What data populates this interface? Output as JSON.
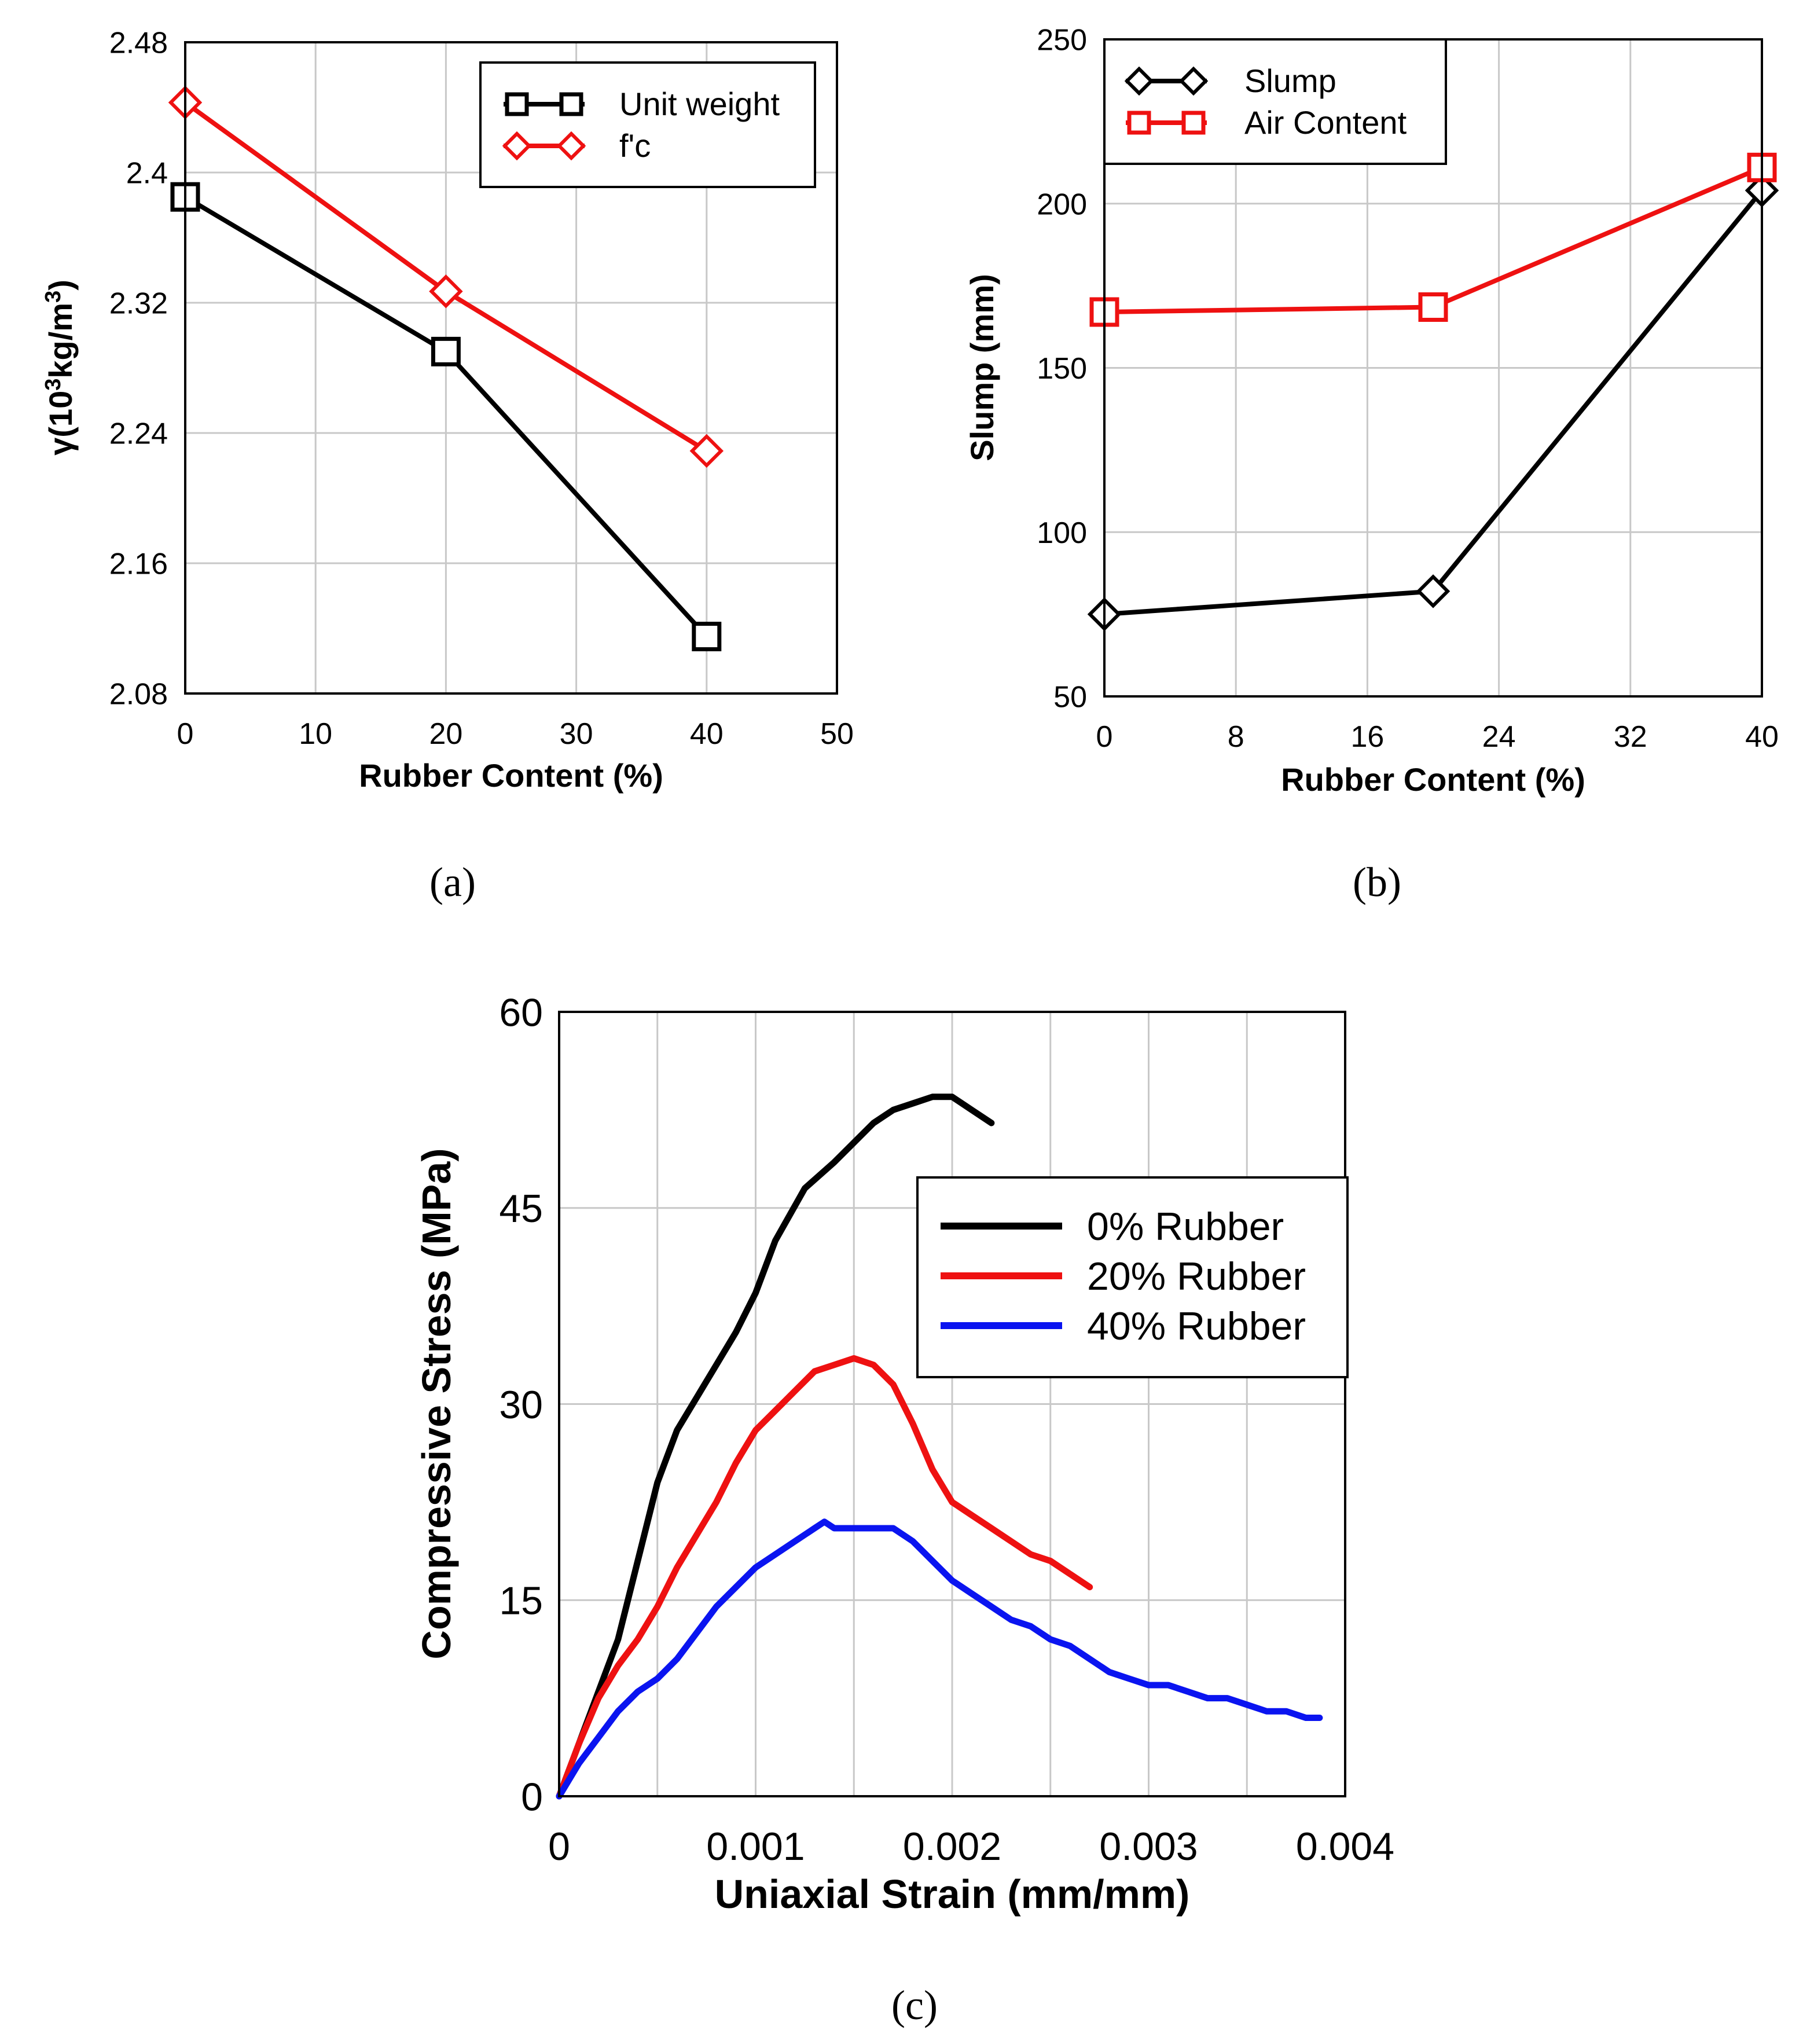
{
  "chart_data": [
    {
      "id": "a",
      "type": "line",
      "panel_label": "(a)",
      "xlabel": "Rubber Content (%)",
      "ylabel_parts": [
        "γ(10",
        "3",
        "kg/m",
        "3",
        ")"
      ],
      "xlim": [
        0,
        50
      ],
      "ylim": [
        2.08,
        2.48
      ],
      "xticks": [
        0,
        10,
        20,
        30,
        40,
        50
      ],
      "xtick_labels": [
        "0",
        "10",
        "20",
        "30",
        "40",
        "50"
      ],
      "yticks": [
        2.08,
        2.16,
        2.24,
        2.32,
        2.4,
        2.48
      ],
      "ytick_labels": [
        "2.08",
        "2.16",
        "2.24",
        "2.32",
        "2.4",
        "2.48"
      ],
      "grid": true,
      "legend_position": "top-right",
      "series": [
        {
          "name": "Unit weight",
          "color": "#000000",
          "marker": "square",
          "x": [
            0,
            20,
            40
          ],
          "y": [
            2.385,
            2.29,
            2.115
          ]
        },
        {
          "name": "f'c",
          "color": "#ee1111",
          "marker": "diamond",
          "x": [
            0,
            20,
            40
          ],
          "y": [
            2.443,
            2.327,
            2.229
          ]
        }
      ]
    },
    {
      "id": "b",
      "type": "line",
      "panel_label": "(b)",
      "xlabel": "Rubber Content (%)",
      "ylabel": "Slump (mm)",
      "xlim": [
        0,
        40
      ],
      "ylim": [
        50,
        250
      ],
      "xticks": [
        0,
        8,
        16,
        24,
        32,
        40
      ],
      "xtick_labels": [
        "0",
        "8",
        "16",
        "24",
        "32",
        "40"
      ],
      "yticks": [
        50,
        100,
        150,
        200,
        250
      ],
      "ytick_labels": [
        "50",
        "100",
        "150",
        "200",
        "250"
      ],
      "grid": true,
      "legend_position": "top-left",
      "series": [
        {
          "name": "Slump",
          "color": "#000000",
          "marker": "diamond",
          "x": [
            0,
            20,
            40
          ],
          "y": [
            75,
            82,
            204
          ]
        },
        {
          "name": "Air Content",
          "color": "#ee1111",
          "marker": "square",
          "x": [
            0,
            20,
            40
          ],
          "y": [
            167,
            168.5,
            211
          ]
        }
      ]
    },
    {
      "id": "c",
      "type": "line",
      "panel_label": "(c)",
      "xlabel": "Uniaxial Strain (mm/mm)",
      "ylabel": "Compressive Stress (MPa)",
      "xlim": [
        0,
        0.004
      ],
      "ylim": [
        0,
        60
      ],
      "xticks": [
        0,
        0.0005,
        0.001,
        0.0015,
        0.002,
        0.0025,
        0.003,
        0.0035,
        0.004
      ],
      "xtick_labels": [
        "0",
        "",
        "0.001",
        "",
        "0.002",
        "",
        "0.003",
        "",
        "0.004"
      ],
      "yticks": [
        0,
        15,
        30,
        45,
        60
      ],
      "ytick_labels": [
        "0",
        "15",
        "30",
        "45",
        "60"
      ],
      "grid": true,
      "legend_position": "top-right",
      "series": [
        {
          "name": "0% Rubber",
          "color": "#000000",
          "x": [
            0,
            0.0001,
            0.0002,
            0.0003,
            0.0004,
            0.0005,
            0.0006,
            0.0007,
            0.0008,
            0.0009,
            0.001,
            0.0011,
            0.00125,
            0.0014,
            0.0015,
            0.0016,
            0.0017,
            0.0018,
            0.0019,
            0.002,
            0.0021,
            0.0022
          ],
          "y": [
            0,
            4,
            8,
            12,
            18,
            24,
            28,
            30.5,
            33,
            35.5,
            38.5,
            42.5,
            46.5,
            48.5,
            50,
            51.5,
            52.5,
            53,
            53.5,
            53.5,
            52.5,
            51.5
          ]
        },
        {
          "name": "20% Rubber",
          "color": "#ee1111",
          "x": [
            0,
            0.0001,
            0.0002,
            0.0003,
            0.0004,
            0.0005,
            0.0006,
            0.0007,
            0.0008,
            0.0009,
            0.001,
            0.0011,
            0.0012,
            0.0013,
            0.0014,
            0.0015,
            0.0016,
            0.0017,
            0.0018,
            0.0019,
            0.002,
            0.0021,
            0.0022,
            0.0023,
            0.0024,
            0.0025,
            0.0026,
            0.0027
          ],
          "y": [
            0,
            4,
            7.5,
            10,
            12,
            14.5,
            17.5,
            20,
            22.5,
            25.5,
            28,
            29.5,
            31,
            32.5,
            33,
            33.5,
            33,
            31.5,
            28.5,
            25,
            22.5,
            21.5,
            20.5,
            19.5,
            18.5,
            18,
            17,
            16
          ]
        },
        {
          "name": "40% Rubber",
          "color": "#0a14f0",
          "x": [
            0,
            0.0001,
            0.0002,
            0.0003,
            0.0004,
            0.0005,
            0.0006,
            0.0007,
            0.0008,
            0.0009,
            0.001,
            0.0011,
            0.0012,
            0.0013,
            0.00135,
            0.0014,
            0.0015,
            0.0016,
            0.0017,
            0.0018,
            0.0019,
            0.002,
            0.0021,
            0.0022,
            0.0023,
            0.0024,
            0.0025,
            0.0026,
            0.0027,
            0.0028,
            0.0029,
            0.003,
            0.0031,
            0.0032,
            0.0033,
            0.0034,
            0.0035,
            0.0036,
            0.0037,
            0.0038,
            0.00387
          ],
          "y": [
            0,
            2.5,
            4.5,
            6.5,
            8,
            9,
            10.5,
            12.5,
            14.5,
            16,
            17.5,
            18.5,
            19.5,
            20.5,
            21,
            20.5,
            20.5,
            20.5,
            20.5,
            19.5,
            18,
            16.5,
            15.5,
            14.5,
            13.5,
            13,
            12,
            11.5,
            10.5,
            9.5,
            9,
            8.5,
            8.5,
            8,
            7.5,
            7.5,
            7,
            6.5,
            6.5,
            6,
            6
          ]
        }
      ]
    }
  ]
}
